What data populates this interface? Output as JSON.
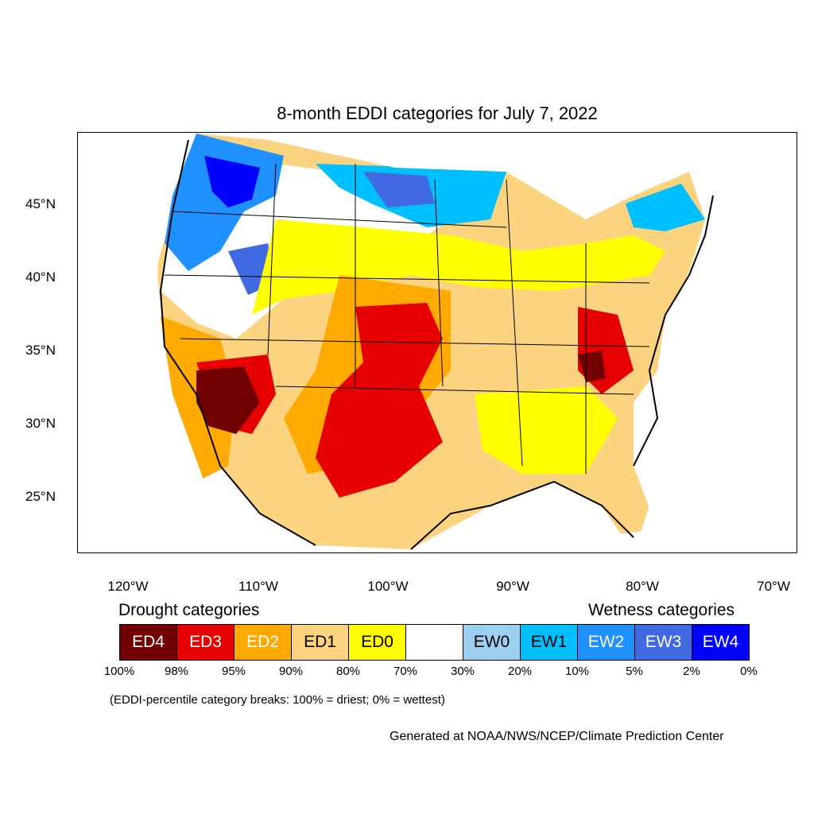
{
  "title": "8-month EDDI categories for July 7, 2022",
  "lat_labels": [
    "45°N",
    "40°N",
    "35°N",
    "30°N",
    "25°N"
  ],
  "lon_labels": [
    "120°W",
    "110°W",
    "100°W",
    "90°W",
    "80°W",
    "70°W"
  ],
  "legend": {
    "drought_heading": "Drought categories",
    "wetness_heading": "Wetness categories",
    "categories": [
      {
        "label": "ED4",
        "color": "#730000",
        "text_color": "#ffffff"
      },
      {
        "label": "ED3",
        "color": "#e60000",
        "text_color": "#ffffff"
      },
      {
        "label": "ED2",
        "color": "#ffaa00",
        "text_color": "#ffffff"
      },
      {
        "label": "ED1",
        "color": "#fcd37f",
        "text_color": "#000000"
      },
      {
        "label": "ED0",
        "color": "#ffff00",
        "text_color": "#000000"
      },
      {
        "label": "",
        "color": "#ffffff",
        "text_color": "#000000"
      },
      {
        "label": "EW0",
        "color": "#9dcff0",
        "text_color": "#000000"
      },
      {
        "label": "EW1",
        "color": "#00bfff",
        "text_color": "#000000"
      },
      {
        "label": "EW2",
        "color": "#1e90ff",
        "text_color": "#ffffff"
      },
      {
        "label": "EW3",
        "color": "#4169e1",
        "text_color": "#ffffff"
      },
      {
        "label": "EW4",
        "color": "#0000ff",
        "text_color": "#ffffff"
      }
    ],
    "percentiles": [
      "100%",
      "98%",
      "95%",
      "90%",
      "80%",
      "70%",
      "30%",
      "20%",
      "10%",
      "5%",
      "2%",
      "0%"
    ]
  },
  "note": "(EDDI-percentile category breaks: 100% = driest; 0% = wettest)",
  "credit": "Generated at NOAA/NWS/NCEP/Climate Prediction Center"
}
